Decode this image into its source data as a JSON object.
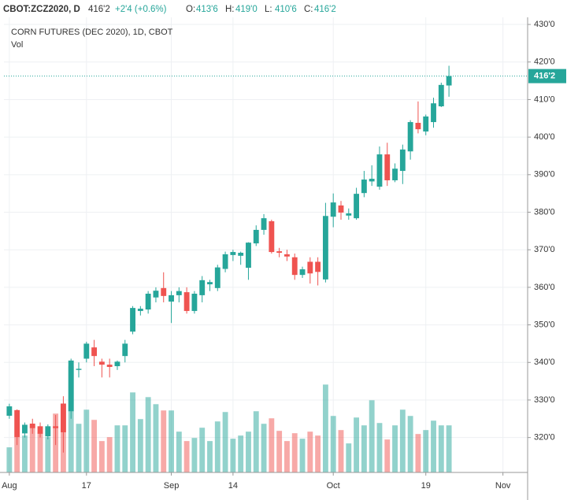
{
  "header": {
    "symbol": "CBOT:ZCZ2020, D",
    "last": "416'2",
    "change": "+2'4 (+0.6%)",
    "ohlc": [
      {
        "label": "O:",
        "value": "413'6"
      },
      {
        "label": "H:",
        "value": "419'0"
      },
      {
        "label": "L:",
        "value": "410'6"
      },
      {
        "label": "C:",
        "value": "416'2"
      }
    ]
  },
  "chart_data": {
    "type": "candlestick",
    "title": "CORN FUTURES (DEC 2020), 1D, CBOT",
    "subtitle": "Vol",
    "up_color": "#26a69a",
    "down_color": "#ef5350",
    "grid": true,
    "xlim": [
      -0.7,
      67.2
    ],
    "xticks": [
      {
        "value": 0,
        "label": "Aug"
      },
      {
        "value": 10,
        "label": "17"
      },
      {
        "value": 21,
        "label": "Sep"
      },
      {
        "value": 29,
        "label": "14"
      },
      {
        "value": 42,
        "label": "Oct"
      },
      {
        "value": 54,
        "label": "19"
      },
      {
        "value": 64,
        "label": "Nov"
      }
    ],
    "ylim": [
      310.7,
      431.9
    ],
    "yticks": [
      {
        "value": 320,
        "label": "320'0"
      },
      {
        "value": 330,
        "label": "330'0"
      },
      {
        "value": 340,
        "label": "340'0"
      },
      {
        "value": 350,
        "label": "350'0"
      },
      {
        "value": 360,
        "label": "360'0"
      },
      {
        "value": 370,
        "label": "370'0"
      },
      {
        "value": 380,
        "label": "380'0"
      },
      {
        "value": 390,
        "label": "390'0"
      },
      {
        "value": 400,
        "label": "400'0"
      },
      {
        "value": 410,
        "label": "410'0"
      },
      {
        "value": 420,
        "label": "420'0"
      },
      {
        "value": 430,
        "label": "430'0"
      }
    ],
    "price_line": {
      "value": 416.25,
      "label": "416'2"
    },
    "vlim": [
      0,
      580
    ],
    "series": {
      "open": [
        325.8,
        327.3,
        321.1,
        323.7,
        323,
        320.3,
        323,
        329,
        327,
        338,
        341,
        344,
        340.2,
        339.4,
        339,
        341.7,
        348.2,
        353.7,
        354.1,
        357.3,
        359.8,
        356.2,
        357.9,
        358.7,
        353.7,
        357.9,
        360.8,
        359.8,
        364.9,
        368.6,
        368.4,
        365.2,
        371.7,
        375.3,
        377.6,
        369.6,
        368.8,
        368,
        363.3,
        366.8,
        366.8,
        362.1,
        378.8,
        381.8,
        379.1,
        378.4,
        385.1,
        388.2,
        386.8,
        395.4,
        388.5,
        391,
        396.2,
        403.8,
        401.5,
        404,
        408.2,
        413.75
      ],
      "high": [
        329,
        327.5,
        324,
        325,
        324,
        323.5,
        326,
        331,
        341,
        340,
        345.5,
        346,
        341,
        341,
        340.5,
        346,
        355,
        355,
        359,
        360,
        364,
        359,
        360,
        360,
        359,
        363,
        362,
        366,
        369.5,
        370,
        369.5,
        372,
        376.5,
        379.5,
        378,
        370.5,
        370,
        369,
        365.5,
        368,
        368,
        382.5,
        385,
        383,
        381,
        386.5,
        391,
        392.5,
        397.5,
        398.5,
        393,
        398,
        404.5,
        409.5,
        406,
        410.5,
        414.5,
        419
      ],
      "low": [
        325,
        318,
        320,
        321,
        320,
        319.5,
        318,
        316,
        325,
        336,
        340,
        339,
        336,
        336,
        338,
        340,
        347.5,
        352.5,
        353,
        356,
        356,
        350.5,
        356,
        353,
        353,
        356,
        359,
        359,
        364,
        367,
        366,
        362,
        371,
        374,
        369,
        368,
        367,
        362,
        362.5,
        361,
        360.5,
        361.3,
        376,
        378,
        378,
        378,
        384,
        387,
        386,
        387,
        388,
        387.5,
        394,
        401,
        400.5,
        402.5,
        408,
        410.75
      ],
      "close": [
        328.3,
        320.1,
        323.4,
        322.5,
        321,
        323,
        322.5,
        321.4,
        340.5,
        338.3,
        345,
        341.7,
        339.4,
        338.8,
        340.2,
        345,
        354.5,
        354.3,
        358.3,
        359.1,
        357.7,
        357.9,
        359,
        353.7,
        358.3,
        361.9,
        361.4,
        365.3,
        368.8,
        369.4,
        369.2,
        371.9,
        375.3,
        378.4,
        369.4,
        369.2,
        368.2,
        363.3,
        364.8,
        363.7,
        364.1,
        379,
        382.6,
        379.9,
        379.7,
        384.9,
        388.7,
        388.9,
        395.4,
        388.5,
        391.6,
        396.7,
        404,
        402.1,
        405.5,
        409,
        413.9,
        416.25
      ],
      "volume": [
        32,
        45,
        47,
        60,
        51,
        45,
        75,
        88,
        135,
        62,
        80,
        67,
        40,
        45,
        60,
        60,
        102,
        68,
        96,
        87,
        79,
        79,
        52,
        40,
        44,
        57,
        40,
        65,
        77,
        43,
        47,
        52,
        78,
        62,
        69,
        53,
        40,
        50,
        43,
        52,
        47,
        112,
        72,
        54,
        37,
        70,
        60,
        92,
        63,
        42,
        60,
        80,
        72,
        49,
        54,
        66,
        60,
        60
      ]
    }
  }
}
